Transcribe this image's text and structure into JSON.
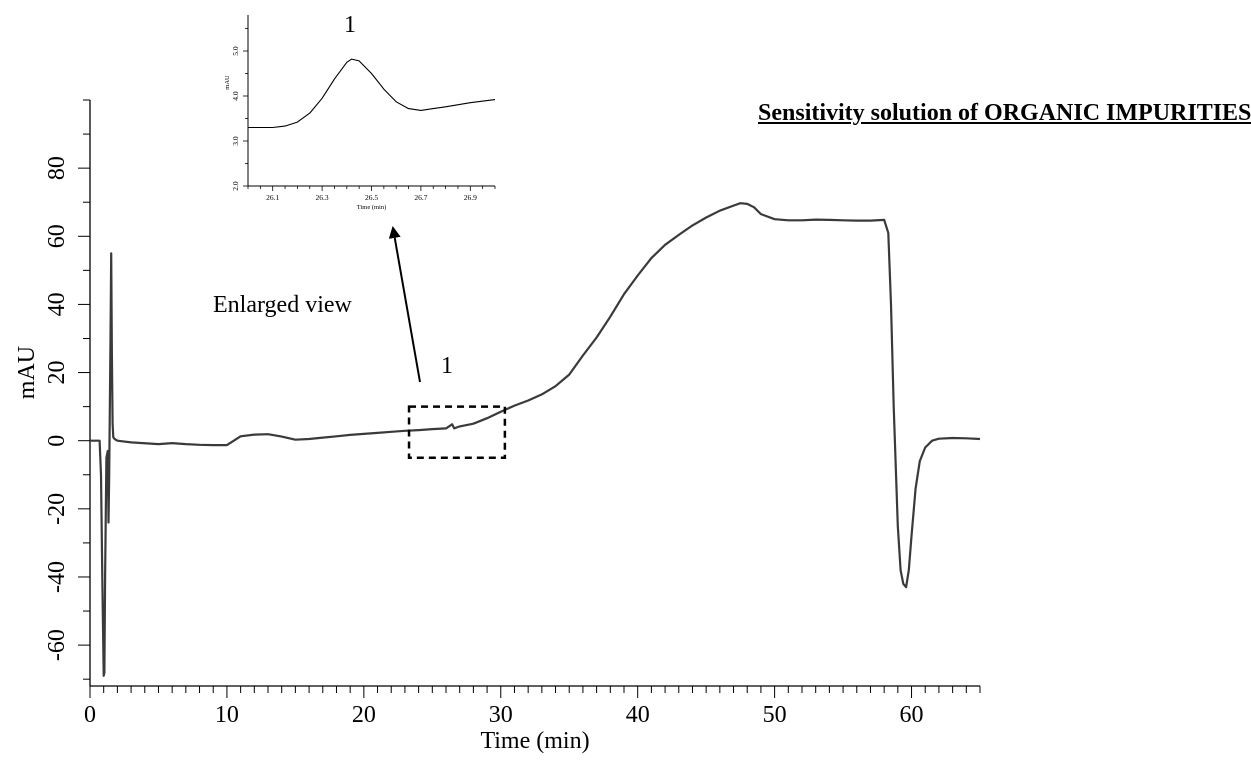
{
  "page_title": "Sensitivity solution of ORGANIC IMPURITIES",
  "annotations": {
    "enlarged_view_label": "Enlarged view",
    "peak_label_main": "1",
    "peak_label_inset": "1"
  },
  "colors": {
    "trace": "#3a3a3a",
    "axes": "#000000",
    "background": "#ffffff"
  },
  "chart_data": [
    {
      "id": "main",
      "type": "line",
      "xlabel": "Time (min)",
      "ylabel": "mAU",
      "xlim": [
        0,
        65
      ],
      "ylim": [
        -72,
        100
      ],
      "xticks": [
        0,
        10,
        20,
        30,
        40,
        50,
        60
      ],
      "xtick_labels": [
        "0",
        "10",
        "20",
        "30",
        "40",
        "50",
        "60"
      ],
      "yticks": [
        -60,
        -40,
        -20,
        0,
        20,
        40,
        60,
        80
      ],
      "ytick_labels": [
        "-60",
        "-40",
        "-20",
        "0",
        "20",
        "40",
        "60",
        "80"
      ],
      "grid": false,
      "highlight_box": {
        "x": [
          23.3,
          30.3
        ],
        "y": [
          -5,
          10
        ]
      },
      "series": [
        {
          "x": [
            0,
            0.7,
            0.8,
            0.9,
            1.0,
            1.05,
            1.1,
            1.2,
            1.3,
            1.35,
            1.4,
            1.5,
            1.55,
            1.6,
            1.65,
            1.7,
            1.8,
            2.0,
            3,
            5,
            6,
            7,
            8,
            9,
            10,
            10.5,
            11,
            12,
            13,
            14,
            15,
            16,
            17,
            18,
            19,
            20,
            21,
            22,
            23,
            24,
            25,
            26,
            26.3,
            26.45,
            26.6,
            26.8,
            27,
            28,
            29,
            30,
            31,
            32,
            33,
            34,
            35,
            36,
            37,
            38,
            39,
            40,
            41,
            42,
            43,
            44,
            45,
            46,
            47,
            47.5,
            48,
            48.5,
            49,
            50,
            51,
            52,
            53,
            54,
            55,
            56,
            57,
            58,
            58.3,
            58.5,
            58.7,
            59.0,
            59.2,
            59.4,
            59.6,
            59.8,
            60.0,
            60.3,
            60.6,
            61.0,
            61.5,
            62,
            63,
            64,
            65
          ],
          "y": [
            0,
            0,
            -10,
            -40,
            -69,
            -68,
            -40,
            -5,
            -3,
            -24,
            -10,
            30,
            55,
            25,
            5,
            1,
            0.5,
            0,
            -0.5,
            -1,
            -0.7,
            -1,
            -1.2,
            -1.3,
            -1.3,
            0,
            1.3,
            1.8,
            1.9,
            1.2,
            0.3,
            0.5,
            0.9,
            1.3,
            1.7,
            2.0,
            2.3,
            2.6,
            2.9,
            3.1,
            3.4,
            3.6,
            4.4,
            4.8,
            3.6,
            3.9,
            4.2,
            5,
            6.6,
            8.5,
            10.3,
            11.8,
            13.6,
            16,
            19.4,
            25,
            30.3,
            36.4,
            43,
            48.5,
            53.6,
            57.5,
            60.4,
            63.2,
            65.5,
            67.5,
            69,
            69.7,
            69.5,
            68.5,
            66.5,
            65,
            64.7,
            64.7,
            64.9,
            64.8,
            64.7,
            64.6,
            64.6,
            64.8,
            61,
            40,
            10,
            -25,
            -38,
            -42,
            -43,
            -38,
            -28,
            -14,
            -6,
            -2,
            0,
            0.6,
            0.8,
            0.7,
            0.5
          ]
        }
      ]
    },
    {
      "id": "inset",
      "type": "line",
      "xlabel": "Time (min)",
      "ylabel": "mAU",
      "xlim": [
        26.0,
        27.0
      ],
      "ylim": [
        2.0,
        5.8
      ],
      "xticks": [
        26.1,
        26.3,
        26.5,
        26.7,
        26.9
      ],
      "xtick_labels": [
        "26.1",
        "26.3",
        "26.5",
        "26.7",
        "26.9"
      ],
      "yticks": [
        2.0,
        3.0,
        4.0,
        5.0
      ],
      "ytick_labels": [
        "2.0",
        "3.0",
        "4.0",
        "5.0"
      ],
      "grid": false,
      "series": [
        {
          "x": [
            26.0,
            26.1,
            26.15,
            26.2,
            26.25,
            26.3,
            26.35,
            26.4,
            26.42,
            26.45,
            26.5,
            26.55,
            26.6,
            26.65,
            26.7,
            26.75,
            26.8,
            26.9,
            27.0
          ],
          "y": [
            3.3,
            3.3,
            3.33,
            3.42,
            3.62,
            3.95,
            4.38,
            4.75,
            4.82,
            4.78,
            4.5,
            4.15,
            3.87,
            3.72,
            3.68,
            3.72,
            3.76,
            3.85,
            3.92
          ]
        }
      ]
    }
  ]
}
